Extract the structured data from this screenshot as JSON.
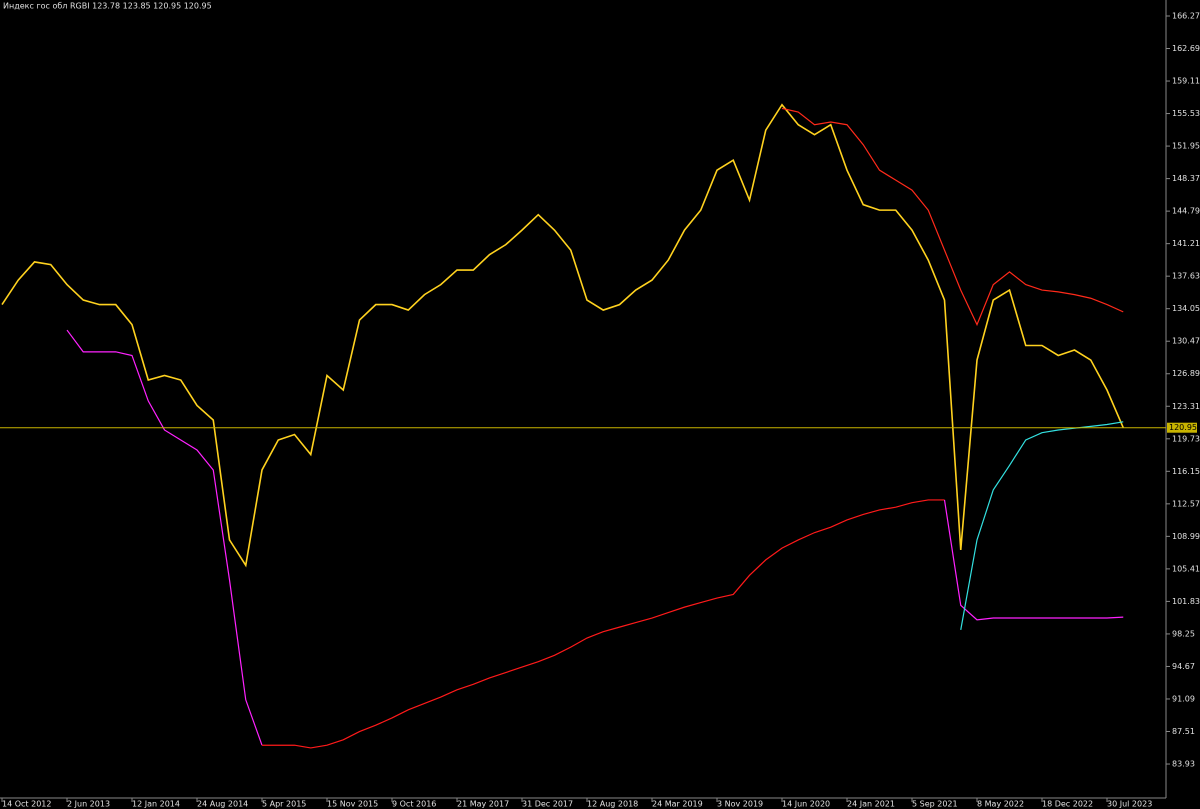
{
  "chart_data": {
    "type": "line",
    "title": "Индекс гос обл RGBI  123.78 123.85 120.95 120.95",
    "categories": [
      "14 Oct 2012",
      null,
      null,
      null,
      "2 Jun 2013",
      null,
      null,
      null,
      "12 Jan 2014",
      null,
      null,
      null,
      "24 Aug 2014",
      null,
      null,
      null,
      "5 Apr 2015",
      null,
      null,
      null,
      "15 Nov 2015",
      null,
      null,
      null,
      "9 Oct 2016",
      null,
      null,
      null,
      "21 May 2017",
      null,
      null,
      null,
      "31 Dec 2017",
      null,
      null,
      null,
      "12 Aug 2018",
      null,
      null,
      null,
      "24 Mar 2019",
      null,
      null,
      null,
      "3 Nov 2019",
      null,
      null,
      null,
      "14 Jun 2020",
      null,
      null,
      null,
      "24 Jan 2021",
      null,
      null,
      null,
      "5 Sep 2021",
      null,
      null,
      null,
      "8 May 2022",
      null,
      null,
      null,
      "18 Dec 2022",
      null,
      null,
      null,
      "30 Jul 2023",
      null
    ],
    "series": [
      {
        "color": "#ffd21f",
        "values": [
          134.5,
          137.2,
          139.2,
          138.9,
          136.7,
          135.0,
          134.5,
          134.5,
          132.3,
          126.2,
          126.7,
          126.2,
          123.4,
          121.8,
          108.6,
          105.8,
          116.3,
          119.6,
          120.2,
          118.0,
          126.7,
          125.1,
          132.8,
          134.5,
          134.5,
          133.9,
          135.6,
          136.7,
          138.3,
          138.3,
          140.0,
          141.1,
          142.7,
          144.4,
          142.7,
          140.5,
          135.0,
          133.9,
          134.5,
          136.1,
          137.2,
          139.4,
          142.7,
          144.9,
          149.3,
          150.4,
          146.0,
          153.7,
          156.5,
          154.3,
          153.2,
          154.3,
          149.3,
          145.5,
          144.9,
          144.9,
          142.7,
          139.4,
          135.0,
          107.5,
          128.4,
          135.0,
          136.1,
          130.0,
          130.0,
          128.9,
          129.5,
          128.4,
          125.1,
          120.95
        ]
      },
      {
        "color": "#ff2a1a",
        "values": [
          null,
          null,
          null,
          null,
          null,
          null,
          null,
          null,
          null,
          null,
          null,
          null,
          null,
          null,
          null,
          null,
          null,
          null,
          null,
          null,
          null,
          null,
          null,
          null,
          null,
          null,
          null,
          null,
          null,
          null,
          null,
          null,
          null,
          null,
          null,
          null,
          null,
          null,
          null,
          null,
          null,
          null,
          null,
          null,
          null,
          null,
          null,
          null,
          156.1,
          155.7,
          154.3,
          154.6,
          154.3,
          152.1,
          149.3,
          148.2,
          147.1,
          144.9,
          140.5,
          136.1,
          132.3,
          136.7,
          138.1,
          136.7,
          136.1,
          135.9,
          135.6,
          135.2,
          134.5,
          133.7
        ]
      },
      {
        "color": "#ff22ff",
        "values": [
          null,
          null,
          null,
          null,
          131.7,
          129.3,
          129.3,
          129.3,
          128.9,
          123.9,
          120.7,
          119.6,
          118.5,
          116.3,
          104.2,
          91.0,
          86.0,
          null,
          null,
          null,
          null,
          null,
          null,
          null,
          null,
          null,
          null,
          null,
          null,
          null,
          null,
          null,
          null,
          null,
          null,
          null,
          null,
          null,
          null,
          null,
          null,
          null,
          null,
          null,
          null,
          null,
          null,
          null,
          null,
          null,
          null,
          null,
          null,
          null,
          null,
          null,
          null,
          null,
          null,
          null,
          null,
          null,
          null,
          null,
          null,
          null,
          null,
          null,
          null,
          null
        ]
      },
      {
        "color": "#ff1a1a",
        "values": [
          null,
          null,
          null,
          null,
          null,
          null,
          null,
          null,
          null,
          null,
          null,
          null,
          null,
          null,
          null,
          null,
          86.0,
          86.0,
          86.0,
          85.7,
          86.0,
          86.6,
          87.5,
          88.2,
          89.0,
          89.9,
          90.6,
          91.3,
          92.1,
          92.7,
          93.4,
          94.0,
          94.6,
          95.2,
          95.9,
          96.8,
          97.8,
          98.5,
          99.0,
          99.5,
          100.0,
          100.6,
          101.2,
          101.7,
          102.2,
          102.6,
          104.7,
          106.4,
          107.7,
          108.6,
          109.4,
          110.0,
          110.8,
          111.4,
          111.9,
          112.2,
          112.7,
          113.0,
          113.0,
          null,
          null,
          null,
          null,
          null,
          null,
          null,
          null,
          null,
          null,
          null
        ]
      },
      {
        "color": "#ff22ff",
        "values": [
          null,
          null,
          null,
          null,
          null,
          null,
          null,
          null,
          null,
          null,
          null,
          null,
          null,
          null,
          null,
          null,
          null,
          null,
          null,
          null,
          null,
          null,
          null,
          null,
          null,
          null,
          null,
          null,
          null,
          null,
          null,
          null,
          null,
          null,
          null,
          null,
          null,
          null,
          null,
          null,
          null,
          null,
          null,
          null,
          null,
          null,
          null,
          null,
          null,
          null,
          null,
          null,
          null,
          null,
          null,
          null,
          null,
          null,
          113.0,
          101.4,
          99.8,
          100.0,
          100.0,
          100.0,
          100.0,
          100.0,
          100.0,
          100.0,
          100.0,
          100.1
        ]
      },
      {
        "color": "#33e0e0",
        "values": [
          null,
          null,
          null,
          null,
          null,
          null,
          null,
          null,
          null,
          null,
          null,
          null,
          null,
          null,
          null,
          null,
          null,
          null,
          null,
          null,
          null,
          null,
          null,
          null,
          null,
          null,
          null,
          null,
          null,
          null,
          null,
          null,
          null,
          null,
          null,
          null,
          null,
          null,
          null,
          null,
          null,
          null,
          null,
          null,
          null,
          null,
          null,
          null,
          null,
          null,
          null,
          null,
          null,
          null,
          null,
          null,
          null,
          null,
          null,
          98.7,
          108.6,
          114.1,
          116.8,
          119.6,
          120.4,
          120.7,
          120.9,
          121.1,
          121.3,
          121.6
        ]
      }
    ],
    "current_price": 120.95,
    "current_price_color": "#c8b400",
    "ylim": [
      80.19,
      168.03
    ],
    "yticks": [
      166.27,
      162.69,
      159.11,
      155.53,
      151.95,
      148.37,
      144.79,
      141.21,
      137.63,
      134.05,
      130.47,
      126.89,
      123.31,
      119.73,
      116.15,
      112.57,
      108.99,
      105.41,
      101.83,
      98.25,
      94.67,
      91.09,
      87.51,
      83.93
    ]
  }
}
